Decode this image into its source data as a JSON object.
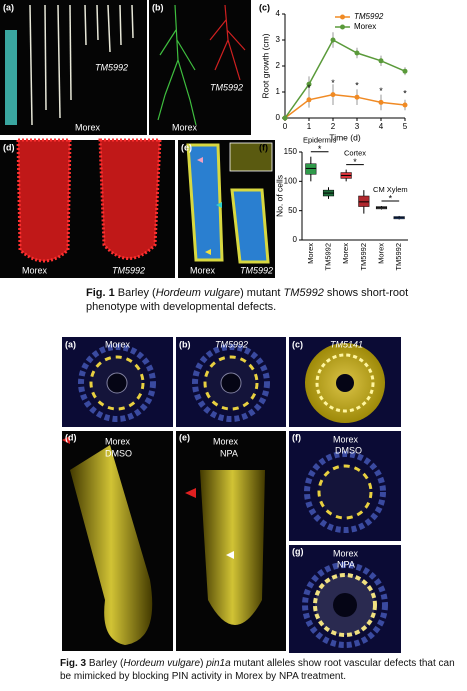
{
  "figure1": {
    "panels": [
      {
        "label": "(a)",
        "texts": [
          "TM5992",
          "Morex"
        ]
      },
      {
        "label": "(b)",
        "texts": [
          "TM5992",
          "Morex"
        ]
      },
      {
        "label": "(d)",
        "texts": [
          "Morex",
          "TM5992"
        ]
      },
      {
        "label": "(e)",
        "texts": [
          "Morex",
          "TM5992"
        ]
      }
    ],
    "caption": [
      "Fig. 1",
      " Barley (",
      "Hordeum vulgare",
      ") mutant ",
      "TM5992",
      " shows short-root phenotype with developmental defects."
    ]
  },
  "figure3": {
    "panels": [
      {
        "label": "(a)",
        "texts": [
          "Morex"
        ]
      },
      {
        "label": "(b)",
        "texts": [
          "TM5992"
        ]
      },
      {
        "label": "(c)",
        "texts": [
          "TM5141"
        ]
      },
      {
        "label": "(d)",
        "texts": [
          "Morex",
          "DMSO"
        ]
      },
      {
        "label": "(e)",
        "texts": [
          "Morex",
          "NPA"
        ]
      },
      {
        "label": "(f)",
        "texts": [
          "Morex",
          "DMSO"
        ]
      },
      {
        "label": "(g)",
        "texts": [
          "Morex",
          "NPA"
        ]
      }
    ],
    "caption": [
      "Fig. 3",
      " Barley (",
      "Hordeum vulgare",
      ") ",
      "pin1a",
      " mutant alleles show root vascular defects that can be mimicked by blocking PIN activity in Morex by NPA treatment."
    ]
  },
  "chart_data": [
    {
      "type": "line",
      "panel_label": "(c)",
      "x_label": "Time (d)",
      "y_label": "Root growth (cm)",
      "x": [
        0,
        1,
        2,
        3,
        4,
        5
      ],
      "series": [
        {
          "name": "TM5992",
          "color": "#f08a24",
          "values": [
            0,
            0.7,
            0.9,
            0.8,
            0.6,
            0.5
          ],
          "errors": [
            0,
            0.3,
            0.4,
            0.3,
            0.3,
            0.2
          ]
        },
        {
          "name": "Morex",
          "color": "#5a9a3a",
          "values": [
            0,
            1.3,
            3.0,
            2.5,
            2.2,
            1.8
          ],
          "errors": [
            0,
            0.3,
            0.3,
            0.2,
            0.2,
            0.15
          ]
        }
      ],
      "significance": [
        null,
        "*",
        "*",
        "*",
        "*",
        "*"
      ],
      "xlim": [
        0,
        5
      ],
      "xticks": [
        0,
        1,
        2,
        3,
        4,
        5
      ],
      "ylim": [
        0,
        4
      ],
      "yticks": [
        0,
        1,
        2,
        3,
        4
      ]
    },
    {
      "type": "box",
      "panel_label": "(f)",
      "y_label": "No. of cells",
      "series": [
        {
          "name": "Epidermis",
          "categories": [
            "Morex",
            "TM5992"
          ],
          "colors": [
            "#2f9a4a",
            "#1f6e3a"
          ],
          "significance": "*",
          "boxes": [
            {
              "min": 100,
              "q1": 112,
              "median": 122,
              "q3": 130,
              "max": 142
            },
            {
              "min": 70,
              "q1": 75,
              "median": 80,
              "q3": 85,
              "max": 90
            }
          ]
        },
        {
          "name": "Cortex",
          "categories": [
            "Morex",
            "TM5992"
          ],
          "colors": [
            "#d8333a",
            "#b0282e"
          ],
          "significance": "*",
          "boxes": [
            {
              "min": 100,
              "q1": 105,
              "median": 110,
              "q3": 115,
              "max": 120
            },
            {
              "min": 45,
              "q1": 57,
              "median": 65,
              "q3": 75,
              "max": 85
            }
          ]
        },
        {
          "name": "CM Xylem",
          "categories": [
            "Morex",
            "TM5992"
          ],
          "colors": [
            "#6b6b6b",
            "#3b6cc4"
          ],
          "significance": "*",
          "boxes": [
            {
              "min": 52,
              "q1": 53,
              "median": 55,
              "q3": 57,
              "max": 58
            },
            {
              "min": 35,
              "q1": 36,
              "median": 38,
              "q3": 40,
              "max": 41
            }
          ]
        }
      ],
      "ylim": [
        0,
        150
      ],
      "yticks": [
        0,
        50,
        100,
        150
      ]
    }
  ]
}
